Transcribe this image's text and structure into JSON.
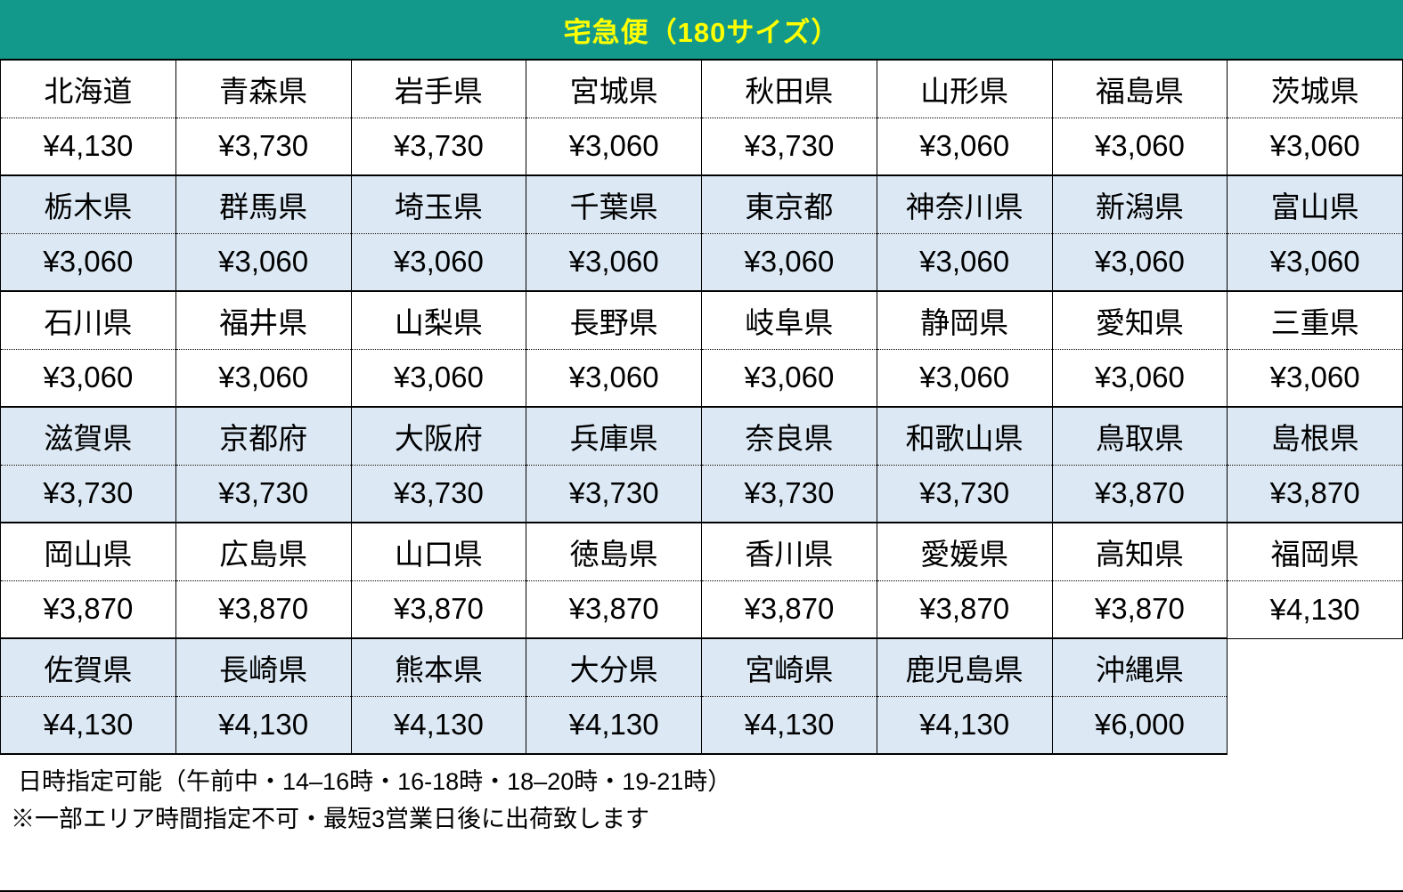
{
  "title_bar": {
    "title": "宅急便（180サイズ）",
    "bg_color": "#12998B",
    "text_color": "#FFFF00"
  },
  "table": {
    "columns_per_row": 8,
    "row_colors": {
      "white_group": "#FFFFFF",
      "blue_group": "#DCE9F5"
    },
    "groups": [
      {
        "bg": "#FFFFFF",
        "cells": [
          {
            "prefecture": "北海道",
            "price": "¥4,130"
          },
          {
            "prefecture": "青森県",
            "price": "¥3,730"
          },
          {
            "prefecture": "岩手県",
            "price": "¥3,730"
          },
          {
            "prefecture": "宮城県",
            "price": "¥3,060"
          },
          {
            "prefecture": "秋田県",
            "price": "¥3,730"
          },
          {
            "prefecture": "山形県",
            "price": "¥3,060"
          },
          {
            "prefecture": "福島県",
            "price": "¥3,060"
          },
          {
            "prefecture": "茨城県",
            "price": "¥3,060"
          }
        ]
      },
      {
        "bg": "#DCE9F5",
        "cells": [
          {
            "prefecture": "栃木県",
            "price": "¥3,060"
          },
          {
            "prefecture": "群馬県",
            "price": "¥3,060"
          },
          {
            "prefecture": "埼玉県",
            "price": "¥3,060"
          },
          {
            "prefecture": "千葉県",
            "price": "¥3,060"
          },
          {
            "prefecture": "東京都",
            "price": "¥3,060"
          },
          {
            "prefecture": "神奈川県",
            "price": "¥3,060"
          },
          {
            "prefecture": "新潟県",
            "price": "¥3,060"
          },
          {
            "prefecture": "富山県",
            "price": "¥3,060"
          }
        ]
      },
      {
        "bg": "#FFFFFF",
        "cells": [
          {
            "prefecture": "石川県",
            "price": "¥3,060"
          },
          {
            "prefecture": "福井県",
            "price": "¥3,060"
          },
          {
            "prefecture": "山梨県",
            "price": "¥3,060"
          },
          {
            "prefecture": "長野県",
            "price": "¥3,060"
          },
          {
            "prefecture": "岐阜県",
            "price": "¥3,060"
          },
          {
            "prefecture": "静岡県",
            "price": "¥3,060"
          },
          {
            "prefecture": "愛知県",
            "price": "¥3,060"
          },
          {
            "prefecture": "三重県",
            "price": "¥3,060"
          }
        ]
      },
      {
        "bg": "#DCE9F5",
        "cells": [
          {
            "prefecture": "滋賀県",
            "price": "¥3,730"
          },
          {
            "prefecture": "京都府",
            "price": "¥3,730"
          },
          {
            "prefecture": "大阪府",
            "price": "¥3,730"
          },
          {
            "prefecture": "兵庫県",
            "price": "¥3,730"
          },
          {
            "prefecture": "奈良県",
            "price": "¥3,730"
          },
          {
            "prefecture": "和歌山県",
            "price": "¥3,730"
          },
          {
            "prefecture": "鳥取県",
            "price": "¥3,870"
          },
          {
            "prefecture": "島根県",
            "price": "¥3,870"
          }
        ]
      },
      {
        "bg": "#FFFFFF",
        "cells": [
          {
            "prefecture": "岡山県",
            "price": "¥3,870"
          },
          {
            "prefecture": "広島県",
            "price": "¥3,870"
          },
          {
            "prefecture": "山口県",
            "price": "¥3,870"
          },
          {
            "prefecture": "徳島県",
            "price": "¥3,870"
          },
          {
            "prefecture": "香川県",
            "price": "¥3,870"
          },
          {
            "prefecture": "愛媛県",
            "price": "¥3,870"
          },
          {
            "prefecture": "高知県",
            "price": "¥3,870"
          },
          {
            "prefecture": "福岡県",
            "price": "¥4,130"
          }
        ]
      },
      {
        "bg": "#DCE9F5",
        "cells": [
          {
            "prefecture": "佐賀県",
            "price": "¥4,130"
          },
          {
            "prefecture": "長崎県",
            "price": "¥4,130"
          },
          {
            "prefecture": "熊本県",
            "price": "¥4,130"
          },
          {
            "prefecture": "大分県",
            "price": "¥4,130"
          },
          {
            "prefecture": "宮崎県",
            "price": "¥4,130"
          },
          {
            "prefecture": "鹿児島県",
            "price": "¥4,130"
          },
          {
            "prefecture": "沖縄県",
            "price": "¥6,000"
          }
        ]
      }
    ]
  },
  "footer": {
    "line1": "日時指定可能（午前中・14–16時・16-18時・18–20時・19-21時）",
    "line2": "※一部エリア時間指定不可・最短3営業日後に出荷致します"
  }
}
